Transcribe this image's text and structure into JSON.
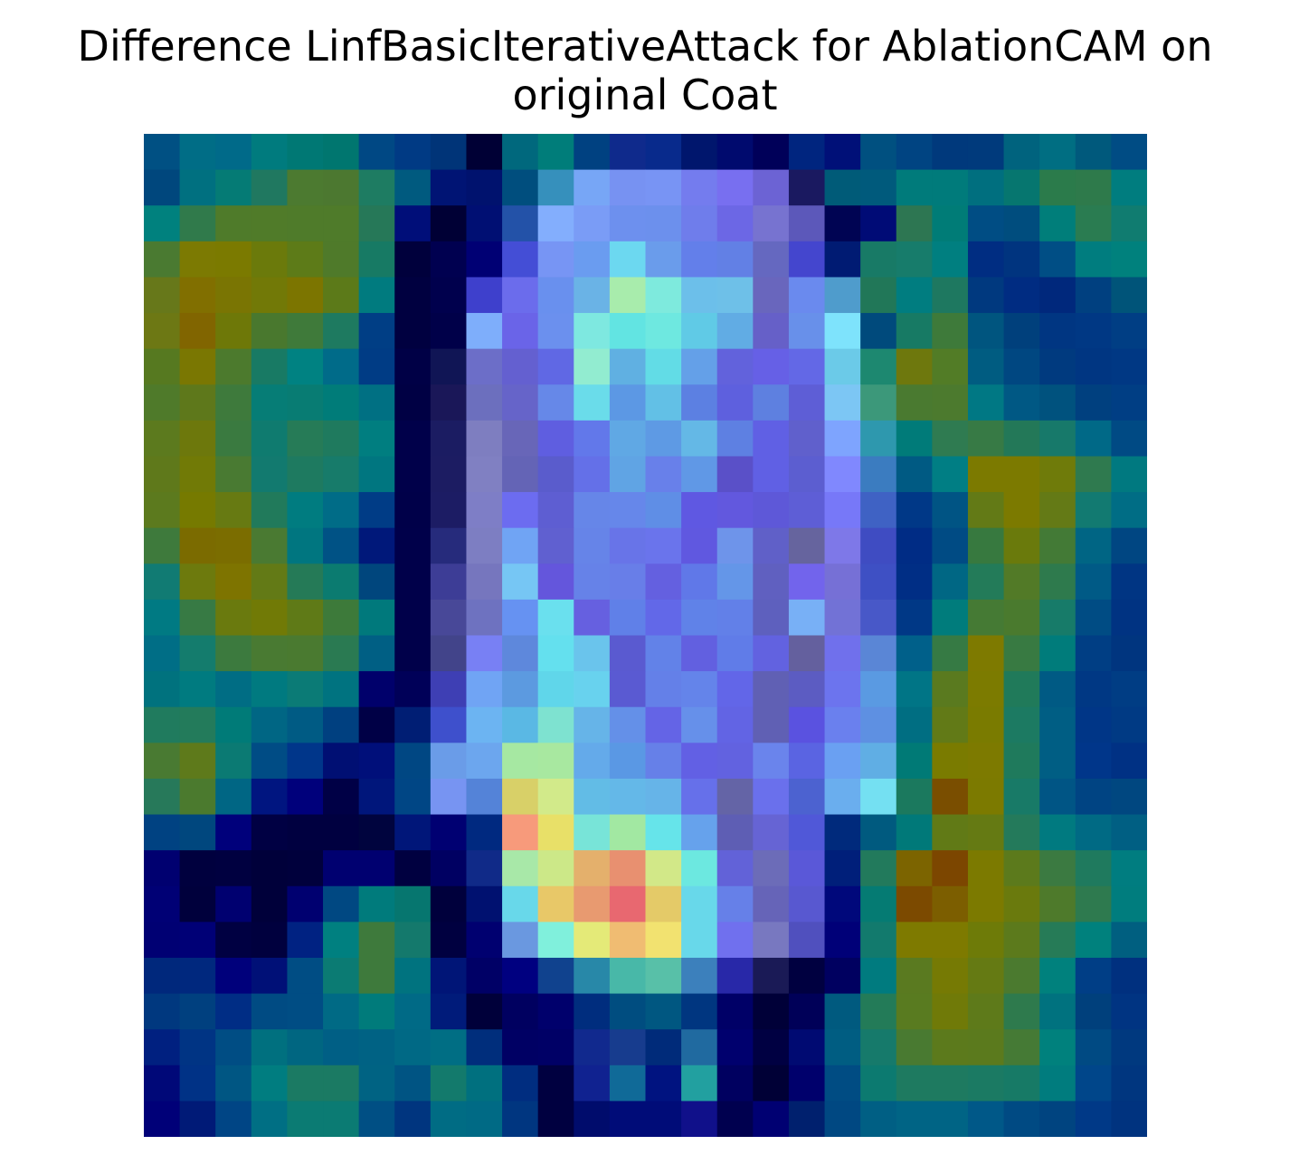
{
  "chart_data": {
    "type": "heatmap",
    "title_line1": "Difference LinfBasicIterativeAttack for AblationCAM on",
    "title_line2": "original Coat",
    "axes_visible": false,
    "rows": 28,
    "cols": 28,
    "cells": [
      [
        "#005083",
        "#006d86",
        "#006a89",
        "#007b7e",
        "#007874",
        "#00766f",
        "#004884",
        "#003a84",
        "#003478",
        "#000035",
        "#00687d",
        "#007d7a",
        "#004181",
        "#0f2a8c",
        "#082a8c",
        "#00166d",
        "#000a6e",
        "#000059",
        "#00257f",
        "#001078",
        "#005080",
        "#004482",
        "#00397c",
        "#003a7c",
        "#00637e",
        "#006e82",
        "#00597c",
        "#004c84"
      ],
      [
        "#00477d",
        "#007080",
        "#057b75",
        "#207860",
        "#4c7a30",
        "#4c7830",
        "#1e7c62",
        "#005a7f",
        "#001474",
        "#00126e",
        "#004e7e",
        "#3690bc",
        "#77a6f6",
        "#7792f2",
        "#7894f4",
        "#747cee",
        "#786ff0",
        "#6c63d4",
        "#1a1960",
        "#005b78",
        "#005a7c",
        "#007b7b",
        "#007b7b",
        "#006f7f",
        "#06766f",
        "#2b7b4b",
        "#2e7a4b",
        "#007d7f"
      ],
      [
        "#00817e",
        "#307a4b",
        "#4f7b2a",
        "#507b29",
        "#4f7b2a",
        "#4f7b2a",
        "#267858",
        "#000e79",
        "#000035",
        "#000f73",
        "#2352a8",
        "#83aefd",
        "#7a9cf6",
        "#6d90ee",
        "#6c90ed",
        "#6f7deb",
        "#6c67e5",
        "#7773d0",
        "#5c58ba",
        "#000453",
        "#000b76",
        "#2d7652",
        "#007c77",
        "#004d84",
        "#004d7e",
        "#007e7a",
        "#2a7c51",
        "#107c70"
      ],
      [
        "#4a7a31",
        "#7c7a02",
        "#7b7a00",
        "#6b7a0b",
        "#5d7b18",
        "#4f7a2a",
        "#177a64",
        "#00003c",
        "#000050",
        "#000074",
        "#444ed6",
        "#7795f4",
        "#6a9cf0",
        "#6cd8f0",
        "#6a9ceb",
        "#637fea",
        "#6280e5",
        "#6568c0",
        "#4446ce",
        "#001b73",
        "#187a66",
        "#177c6b",
        "#007f80",
        "#002d82",
        "#00347f",
        "#004e85",
        "#007d7f",
        "#00817d"
      ],
      [
        "#67781a",
        "#816f00",
        "#7a7503",
        "#727907",
        "#7c7500",
        "#5c7a19",
        "#007b7f",
        "#000040",
        "#00004d",
        "#3e40cc",
        "#6b6cec",
        "#6990ee",
        "#6ab3e6",
        "#a8ecac",
        "#7eeadd",
        "#6cbfea",
        "#6ec0e8",
        "#6966bd",
        "#6a8aee",
        "#4f9ccc",
        "#217758",
        "#007d80",
        "#1e7860",
        "#00397f",
        "#002c82",
        "#00287c",
        "#004080",
        "#005479"
      ],
      [
        "#6d7814",
        "#816500",
        "#6e7808",
        "#49782e",
        "#3f7a3a",
        "#1e7a60",
        "#003e85",
        "#000040",
        "#000049",
        "#7eaefb",
        "#6a64e8",
        "#6b90ee",
        "#7ee8e0",
        "#62e4e2",
        "#6ee8e0",
        "#60cae6",
        "#61ace4",
        "#6660c8",
        "#6890ea",
        "#7ee3fc",
        "#004a7c",
        "#177a64",
        "#3e7a3a",
        "#00557f",
        "#00407c",
        "#003682",
        "#003884",
        "#003e84"
      ],
      [
        "#567920",
        "#7a7702",
        "#4c7a2d",
        "#187a64",
        "#008282",
        "#006b89",
        "#003c85",
        "#000046",
        "#101555",
        "#6c6ec8",
        "#6460d0",
        "#6068e4",
        "#92ecd0",
        "#60b0e2",
        "#62dce6",
        "#64a0e8",
        "#6262dc",
        "#6660e6",
        "#6368e6",
        "#6bcae8",
        "#1d8870",
        "#6e780d",
        "#527c26",
        "#005c81",
        "#004781",
        "#003a7f",
        "#003682",
        "#003884"
      ],
      [
        "#4f7a2a",
        "#5e781b",
        "#3e7a3c",
        "#067d76",
        "#087c73",
        "#007c79",
        "#007083",
        "#000044",
        "#1a1758",
        "#6c6fbe",
        "#6664c9",
        "#6688e8",
        "#6adcea",
        "#5c98e4",
        "#62c0e6",
        "#5c80e2",
        "#5e60de",
        "#5e80e0",
        "#5e5ed6",
        "#7cc6f4",
        "#3c987a",
        "#4a7a30",
        "#4c7a2e",
        "#007884",
        "#005884",
        "#00527e",
        "#00407f",
        "#003e84"
      ],
      [
        "#5c7a1e",
        "#6d780c",
        "#3a7a40",
        "#0f7b6f",
        "#267b57",
        "#1f7a5e",
        "#007e80",
        "#00004a",
        "#1b1c62",
        "#7e7ec0",
        "#6866b8",
        "#5f5ee0",
        "#6278ea",
        "#60a8e4",
        "#5e9ae4",
        "#64b8e6",
        "#5e80e2",
        "#6060e4",
        "#6060cc",
        "#7ea4fe",
        "#2e98ae",
        "#007b79",
        "#2f7b51",
        "#377a45",
        "#237858",
        "#17796a",
        "#006987",
        "#004a84"
      ],
      [
        "#5f791b",
        "#717a06",
        "#497a32",
        "#127a6f",
        "#1e7a60",
        "#177b6a",
        "#007680",
        "#00004a",
        "#1c1c62",
        "#8080c2",
        "#6464b6",
        "#5a5ccc",
        "#6470e8",
        "#60a4e4",
        "#6880ea",
        "#6098e6",
        "#5a50c8",
        "#6060e4",
        "#5c5ed0",
        "#8088fe",
        "#3b7cc0",
        "#005a83",
        "#007e84",
        "#7c7a00",
        "#7c7a00",
        "#6f7b0a",
        "#2f7a4f",
        "#007980"
      ],
      [
        "#5c7a1e",
        "#767a00",
        "#677a12",
        "#217a5b",
        "#007c80",
        "#006c87",
        "#003c86",
        "#000049",
        "#1c1c64",
        "#7e7ec6",
        "#6c6cf0",
        "#5e5ed2",
        "#6686e8",
        "#6687ea",
        "#5f8ee6",
        "#5f58e2",
        "#6258de",
        "#5e58d8",
        "#5e5ed6",
        "#7778f8",
        "#3f62c4",
        "#003887",
        "#005484",
        "#637a16",
        "#7c7a00",
        "#647a16",
        "#127a71",
        "#006d85"
      ],
      [
        "#3e7a3c",
        "#7b6b00",
        "#7b6d00",
        "#4a7a32",
        "#007680",
        "#005285",
        "#00187a",
        "#00004a",
        "#262b7c",
        "#7d7ec2",
        "#70a4f4",
        "#6060d0",
        "#6684e8",
        "#6874e8",
        "#6a74ec",
        "#6058e0",
        "#6e94ea",
        "#6060c8",
        "#66649e",
        "#7e78e8",
        "#3f4cc2",
        "#002c85",
        "#004b84",
        "#37793f",
        "#6a7a0c",
        "#437a36",
        "#006584",
        "#004682"
      ],
      [
        "#117b73",
        "#6d7a0d",
        "#7e7400",
        "#637a16",
        "#257a57",
        "#0b7b70",
        "#00467d",
        "#00004a",
        "#3d3d96",
        "#7676be",
        "#76c6f4",
        "#6456dc",
        "#6682e8",
        "#687ee8",
        "#6460e0",
        "#6078e8",
        "#6496e8",
        "#6060c0",
        "#7264ec",
        "#7670d6",
        "#3e50c4",
        "#002e85",
        "#006784",
        "#237b59",
        "#527a27",
        "#2e7a4d",
        "#005a86",
        "#003583"
      ],
      [
        "#007a83",
        "#377a44",
        "#6a7a0e",
        "#717a06",
        "#5f7a17",
        "#3d7a3a",
        "#00797c",
        "#00004a",
        "#484898",
        "#6e72c0",
        "#6692f2",
        "#6ae0ee",
        "#6660e0",
        "#6080e8",
        "#6268e8",
        "#6082e8",
        "#6280e8",
        "#5e60be",
        "#78b0f6",
        "#7272d6",
        "#4858c8",
        "#003886",
        "#007c7c",
        "#457a34",
        "#4a7a2e",
        "#177b69",
        "#004c84",
        "#003382"
      ],
      [
        "#006e86",
        "#147c6d",
        "#3c7a3e",
        "#497a32",
        "#4a7a30",
        "#2a7a52",
        "#005f84",
        "#00004a",
        "#42448a",
        "#7880f4",
        "#5e88dc",
        "#64e0ee",
        "#6ac4ec",
        "#5a5ad0",
        "#6282e8",
        "#6260e0",
        "#607ce8",
        "#6262e0",
        "#64609e",
        "#7070ec",
        "#5a86d6",
        "#00608a",
        "#367a44",
        "#7e7a00",
        "#387a42",
        "#007c7b",
        "#003e84",
        "#00357f"
      ],
      [
        "#00727e",
        "#007b80",
        "#006d84",
        "#007a80",
        "#0b7b76",
        "#007380",
        "#00006b",
        "#000058",
        "#3e3fb4",
        "#70a4f4",
        "#5c9ae0",
        "#60d6ea",
        "#68d2ee",
        "#5a5ad2",
        "#6480e8",
        "#6484ea",
        "#6266e8",
        "#6060b4",
        "#5c5cc2",
        "#6c74ee",
        "#5a9ae2",
        "#007586",
        "#5a7a1f",
        "#7c7b00",
        "#207a5a",
        "#005a84",
        "#003884",
        "#003d84"
      ],
      [
        "#207b5e",
        "#237b5b",
        "#007b78",
        "#006684",
        "#005b84",
        "#004080",
        "#000046",
        "#001e74",
        "#3e50cc",
        "#6cb4f2",
        "#5ab8e4",
        "#7ee2d0",
        "#66b4e8",
        "#6490e8",
        "#6464e6",
        "#6690ea",
        "#6264e4",
        "#6060b4",
        "#5a52e0",
        "#6a80ee",
        "#5e90e2",
        "#006e82",
        "#627a17",
        "#7a7b00",
        "#1c7a62",
        "#005e84",
        "#003687",
        "#003a84"
      ],
      [
        "#497a32",
        "#5e7a1b",
        "#0b7a73",
        "#004c85",
        "#00368a",
        "#000f73",
        "#000f7a",
        "#004783",
        "#6a9ce8",
        "#6ca6ee",
        "#a6e8a2",
        "#a8e8a0",
        "#64aaea",
        "#5a98e4",
        "#6680e8",
        "#6260e4",
        "#6262e0",
        "#6a84ec",
        "#5a64e2",
        "#6aa0f2",
        "#60aee4",
        "#007a76",
        "#7a7b00",
        "#7d7a00",
        "#1f7a5c",
        "#005e84",
        "#00368a",
        "#003184"
      ],
      [
        "#27795a",
        "#4b7a2e",
        "#006684",
        "#001580",
        "#00007b",
        "#000046",
        "#00167b",
        "#004685",
        "#7794f2",
        "#5483d8",
        "#d8d068",
        "#d2ea8a",
        "#62bce6",
        "#64b8e8",
        "#66b4e8",
        "#6670ea",
        "#6464a6",
        "#6a70ec",
        "#4c62d0",
        "#6aaeee",
        "#74e0f2",
        "#1b795e",
        "#7a4e00",
        "#7c7a00",
        "#187a67",
        "#005585",
        "#004483",
        "#004780"
      ],
      [
        "#004282",
        "#00477e",
        "#00007b",
        "#000043",
        "#000040",
        "#000040",
        "#00043e",
        "#001679",
        "#000072",
        "#002980",
        "#f79a7b",
        "#e8e068",
        "#78e4d8",
        "#a2e8a2",
        "#66e4ea",
        "#66a2ec",
        "#5e5eb4",
        "#6664d4",
        "#5058d8",
        "#002a7c",
        "#005a7f",
        "#007979",
        "#617a16",
        "#657a13",
        "#247a5b",
        "#007a80",
        "#006a84",
        "#005f83"
      ],
      [
        "#000070",
        "#00003e",
        "#000040",
        "#00003a",
        "#00003c",
        "#000070",
        "#000070",
        "#000040",
        "#000062",
        "#102a88",
        "#a8e8a8",
        "#cce888",
        "#e4b06c",
        "#e89070",
        "#d2e888",
        "#6ce8e0",
        "#6262d8",
        "#6c6cb8",
        "#5a58d8",
        "#001f7a",
        "#227a5c",
        "#7c6400",
        "#7c4600",
        "#7c7a00",
        "#5c7a1c",
        "#3b7a41",
        "#1f7a5e",
        "#007d80"
      ],
      [
        "#000075",
        "#00003c",
        "#000070",
        "#00003a",
        "#000070",
        "#004882",
        "#007b7c",
        "#06766f",
        "#00003c",
        "#001170",
        "#68d8ea",
        "#e8c868",
        "#e89a70",
        "#e86870",
        "#e4ca68",
        "#68d8ea",
        "#6680e8",
        "#6664b8",
        "#5858d0",
        "#00087b",
        "#057b73",
        "#7c4a00",
        "#7c5e00",
        "#7c7a00",
        "#6a7a0d",
        "#4e7a2b",
        "#2e7a4f",
        "#007d7e"
      ],
      [
        "#000073",
        "#000076",
        "#000042",
        "#00003e",
        "#002282",
        "#008080",
        "#3e7a3c",
        "#14796c",
        "#000040",
        "#000070",
        "#6a98e0",
        "#80f0dc",
        "#e4ea78",
        "#f0bc72",
        "#f2e270",
        "#68d8ea",
        "#7070ee",
        "#7878c0",
        "#5050be",
        "#000078",
        "#127a6d",
        "#7e7a00",
        "#7e7a00",
        "#6e7b08",
        "#5c7a1c",
        "#267b57",
        "#00817d",
        "#005f80"
      ],
      [
        "#00287c",
        "#00287e",
        "#00007b",
        "#001077",
        "#004d84",
        "#0b7b73",
        "#3e7a3c",
        "#00737f",
        "#001577",
        "#000066",
        "#000080",
        "#10428e",
        "#2888a8",
        "#48b8a8",
        "#58c0a8",
        "#3c80bc",
        "#2828a8",
        "#1a1a56",
        "#000040",
        "#000060",
        "#007b7f",
        "#5a7a20",
        "#767a04",
        "#657a13",
        "#4b7a2f",
        "#00817d",
        "#003e86",
        "#00307f"
      ],
      [
        "#00387f",
        "#00407f",
        "#002d85",
        "#004b83",
        "#004d84",
        "#006a85",
        "#007b7b",
        "#006a86",
        "#001b7a",
        "#00003a",
        "#000060",
        "#00006c",
        "#002d7e",
        "#004d80",
        "#005781",
        "#003680",
        "#000067",
        "#000038",
        "#000058",
        "#005a7f",
        "#237b58",
        "#597b20",
        "#707a08",
        "#5e7a1a",
        "#2e7a4d",
        "#00727f",
        "#00407c",
        "#003482"
      ],
      [
        "#002080",
        "#003484",
        "#004d84",
        "#00707f",
        "#006681",
        "#005f85",
        "#006284",
        "#006985",
        "#006e84",
        "#002e7c",
        "#000064",
        "#000066",
        "#11298e",
        "#173c8e",
        "#002b7a",
        "#206aa0",
        "#00006e",
        "#000042",
        "#000a72",
        "#005d82",
        "#167a6b",
        "#497a31",
        "#5c7a1c",
        "#5b7a1d",
        "#457a35",
        "#00817d",
        "#004a83",
        "#00397f"
      ],
      [
        "#000878",
        "#003286",
        "#005683",
        "#007d80",
        "#1b7a63",
        "#1b7a63",
        "#006383",
        "#005483",
        "#137a6c",
        "#00707f",
        "#002d80",
        "#000040",
        "#102290",
        "#106a98",
        "#001380",
        "#22a0a0",
        "#000060",
        "#000036",
        "#00006c",
        "#004c83",
        "#0c7a70",
        "#1e7a60",
        "#1e7a60",
        "#1b7a63",
        "#177a66",
        "#007c7e",
        "#00468a",
        "#00367f"
      ],
      [
        "#000078",
        "#001a77",
        "#004585",
        "#006f84",
        "#0b7b73",
        "#0b7b73",
        "#004f84",
        "#00357f",
        "#006c84",
        "#006a85",
        "#003680",
        "#000040",
        "#000c6c",
        "#000c78",
        "#000c78",
        "#10108a",
        "#00004f",
        "#000072",
        "#00206e",
        "#004882",
        "#005f84",
        "#006485",
        "#006485",
        "#005888",
        "#004a83",
        "#004480",
        "#003987",
        "#00337f"
      ]
    ]
  }
}
